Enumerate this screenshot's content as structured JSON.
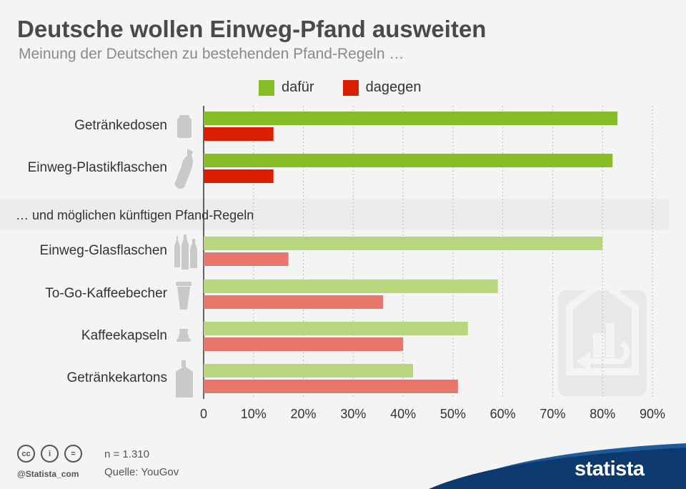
{
  "header": {
    "title": "Deutsche wollen Einweg-Pfand ausweiten",
    "subtitle": "Meinung der Deutschen zu bestehenden Pfand-Regeln …"
  },
  "section2_label": "… und möglichen künftigen Pfand-Regeln",
  "colors": {
    "pro_existing": "#86bc25",
    "contra_existing": "#dc1e00",
    "pro_future": "#b8d77c",
    "contra_future": "#e8766a"
  },
  "chart_data": {
    "type": "bar",
    "orientation": "horizontal",
    "categories": [
      "Getränkedosen",
      "Einweg-Plastikflaschen",
      "Einweg-Glasflaschen",
      "To-Go-Kaffeebecher",
      "Kaffeekapseln",
      "Getränkekartons"
    ],
    "groups": [
      "existing",
      "existing",
      "future",
      "future",
      "future",
      "future"
    ],
    "series": [
      {
        "name": "dafür",
        "values": [
          83,
          82,
          80,
          59,
          53,
          42
        ]
      },
      {
        "name": "dagegen",
        "values": [
          14,
          14,
          17,
          36,
          40,
          51
        ]
      }
    ],
    "xlim": [
      0,
      90
    ],
    "x_ticks": [
      "0",
      "10%",
      "20%",
      "30%",
      "40%",
      "50%",
      "60%",
      "70%",
      "80%",
      "90%"
    ],
    "grid": true,
    "legend": "top"
  },
  "footer": {
    "n": "n = 1.310",
    "source": "Quelle: YouGov",
    "handle": "@Statista_com",
    "brand": "statista",
    "cc_icons": [
      "cc",
      "i",
      "="
    ]
  }
}
